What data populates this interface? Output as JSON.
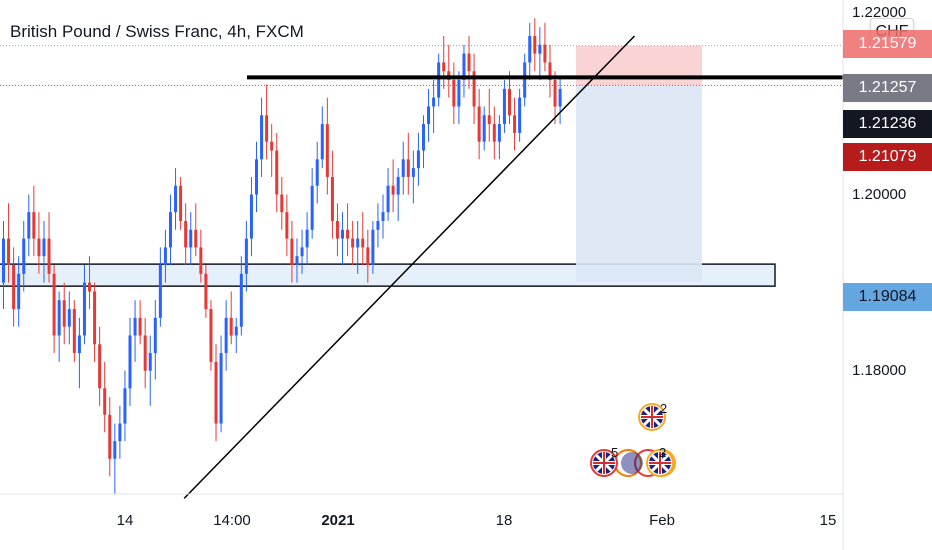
{
  "header": {
    "title": "British Pound / Swiss Franc, 4h, FXCM",
    "currency": "CHF"
  },
  "colors": {
    "up": "#2962ff",
    "down": "#e53935",
    "price_line": "#e53935",
    "stop_zone": "#f9c9c9",
    "target_zone": "#dbe7f5",
    "support_zone": "#e6f0fa",
    "tag_gray": "#787b86",
    "tag_black": "#131722",
    "tag_red": "#b71c1c",
    "tag_blue": "#64a6e0",
    "tag_pink": "#ef6c6c"
  },
  "chart_data": {
    "type": "candlestick",
    "symbol": "British Pound / Swiss Franc",
    "interval": "4h",
    "source": "FXCM",
    "y_ticks": [
      "1.18000",
      "1.20000"
    ],
    "ylim": [
      1.166,
      1.2205
    ],
    "x_ticks": [
      {
        "label": "14",
        "bold": false
      },
      {
        "label": "14:00",
        "bold": false
      },
      {
        "label": "2021",
        "bold": true
      },
      {
        "label": "18",
        "bold": false
      },
      {
        "label": "Feb",
        "bold": false
      },
      {
        "label": "15",
        "bold": false
      }
    ],
    "price_tags": [
      {
        "label": "1.21579",
        "value": 1.2158,
        "style": "pink"
      },
      {
        "label": "1.21257",
        "value": 1.2126,
        "style": "gray"
      },
      {
        "label": "1.21236",
        "value": 1.2124,
        "style": "black"
      },
      {
        "label": "1.21079",
        "value": 1.2108,
        "style": "red"
      },
      {
        "label": "1.19084",
        "value": 1.1908,
        "style": "blue"
      }
    ],
    "top_partial_label": "1.22000",
    "resistance_level": 1.2133,
    "support_zone": [
      1.1896,
      1.1921
    ],
    "position": {
      "type": "short",
      "entry": 1.2124,
      "stop": 1.2169,
      "target": 1.1901
    },
    "trendline": {
      "from": {
        "bar": 36,
        "price": 1.1655
      },
      "to": {
        "bar": 125,
        "price": 1.218
      }
    },
    "events": [
      {
        "label": "2",
        "flag": "uk"
      },
      {
        "label": "5",
        "flag": "uk"
      },
      {
        "label": "2",
        "flag": "uk"
      }
    ],
    "series": [
      {
        "name": "GBPCHF",
        "ohlc": [
          [
            1.19,
            1.197,
            1.187,
            1.195
          ],
          [
            1.195,
            1.199,
            1.19,
            1.192
          ],
          [
            1.192,
            1.194,
            1.185,
            1.187
          ],
          [
            1.187,
            1.193,
            1.185,
            1.191
          ],
          [
            1.191,
            1.197,
            1.189,
            1.195
          ],
          [
            1.195,
            1.2,
            1.193,
            1.198
          ],
          [
            1.198,
            1.201,
            1.193,
            1.195
          ],
          [
            1.195,
            1.198,
            1.191,
            1.193
          ],
          [
            1.193,
            1.197,
            1.19,
            1.195
          ],
          [
            1.195,
            1.198,
            1.19,
            1.191
          ],
          [
            1.191,
            1.192,
            1.182,
            1.184
          ],
          [
            1.184,
            1.189,
            1.181,
            1.188
          ],
          [
            1.188,
            1.19,
            1.183,
            1.185
          ],
          [
            1.185,
            1.189,
            1.183,
            1.187
          ],
          [
            1.187,
            1.188,
            1.181,
            1.182
          ],
          [
            1.182,
            1.186,
            1.178,
            1.184
          ],
          [
            1.184,
            1.192,
            1.183,
            1.19
          ],
          [
            1.19,
            1.193,
            1.187,
            1.189
          ],
          [
            1.189,
            1.19,
            1.181,
            1.183
          ],
          [
            1.183,
            1.185,
            1.176,
            1.178
          ],
          [
            1.178,
            1.181,
            1.173,
            1.175
          ],
          [
            1.175,
            1.177,
            1.168,
            1.17
          ],
          [
            1.17,
            1.174,
            1.166,
            1.172
          ],
          [
            1.172,
            1.176,
            1.17,
            1.174
          ],
          [
            1.174,
            1.18,
            1.172,
            1.178
          ],
          [
            1.178,
            1.186,
            1.176,
            1.184
          ],
          [
            1.184,
            1.188,
            1.181,
            1.186
          ],
          [
            1.186,
            1.188,
            1.183,
            1.184
          ],
          [
            1.184,
            1.186,
            1.178,
            1.18
          ],
          [
            1.18,
            1.184,
            1.176,
            1.182
          ],
          [
            1.182,
            1.188,
            1.179,
            1.186
          ],
          [
            1.186,
            1.194,
            1.185,
            1.192
          ],
          [
            1.192,
            1.196,
            1.19,
            1.194
          ],
          [
            1.194,
            1.2,
            1.192,
            1.198
          ],
          [
            1.198,
            1.203,
            1.196,
            1.201
          ],
          [
            1.201,
            1.202,
            1.196,
            1.197
          ],
          [
            1.197,
            1.199,
            1.192,
            1.194
          ],
          [
            1.194,
            1.198,
            1.192,
            1.196
          ],
          [
            1.196,
            1.199,
            1.193,
            1.194
          ],
          [
            1.194,
            1.196,
            1.19,
            1.191
          ],
          [
            1.191,
            1.192,
            1.186,
            1.187
          ],
          [
            1.187,
            1.188,
            1.18,
            1.181
          ],
          [
            1.181,
            1.183,
            1.172,
            1.174
          ],
          [
            1.174,
            1.184,
            1.173,
            1.182
          ],
          [
            1.182,
            1.188,
            1.18,
            1.186
          ],
          [
            1.186,
            1.189,
            1.183,
            1.184
          ],
          [
            1.184,
            1.186,
            1.182,
            1.185
          ],
          [
            1.185,
            1.193,
            1.184,
            1.191
          ],
          [
            1.191,
            1.197,
            1.189,
            1.195
          ],
          [
            1.195,
            1.202,
            1.193,
            1.2
          ],
          [
            1.2,
            1.206,
            1.198,
            1.204
          ],
          [
            1.204,
            1.211,
            1.202,
            1.209
          ],
          [
            1.209,
            1.2125,
            1.204,
            1.206
          ],
          [
            1.206,
            1.208,
            1.202,
            1.205
          ],
          [
            1.205,
            1.207,
            1.198,
            1.2
          ],
          [
            1.2,
            1.202,
            1.196,
            1.198
          ],
          [
            1.198,
            1.2,
            1.193,
            1.195
          ],
          [
            1.195,
            1.197,
            1.19,
            1.192
          ],
          [
            1.192,
            1.195,
            1.19,
            1.193
          ],
          [
            1.193,
            1.196,
            1.191,
            1.194
          ],
          [
            1.194,
            1.198,
            1.192,
            1.196
          ],
          [
            1.196,
            1.203,
            1.195,
            1.201
          ],
          [
            1.201,
            1.206,
            1.199,
            1.204
          ],
          [
            1.204,
            1.21,
            1.203,
            1.208
          ],
          [
            1.208,
            1.211,
            1.2,
            1.202
          ],
          [
            1.202,
            1.205,
            1.195,
            1.197
          ],
          [
            1.197,
            1.199,
            1.193,
            1.195
          ],
          [
            1.195,
            1.198,
            1.192,
            1.196
          ],
          [
            1.196,
            1.199,
            1.193,
            1.195
          ],
          [
            1.195,
            1.197,
            1.192,
            1.194
          ],
          [
            1.194,
            1.197,
            1.191,
            1.195
          ],
          [
            1.195,
            1.198,
            1.192,
            1.194
          ],
          [
            1.194,
            1.196,
            1.19,
            1.192
          ],
          [
            1.192,
            1.197,
            1.191,
            1.196
          ],
          [
            1.196,
            1.199,
            1.194,
            1.197
          ],
          [
            1.197,
            1.2,
            1.195,
            1.198
          ],
          [
            1.198,
            1.203,
            1.197,
            1.201
          ],
          [
            1.201,
            1.204,
            1.198,
            1.2
          ],
          [
            1.2,
            1.203,
            1.197,
            1.202
          ],
          [
            1.202,
            1.206,
            1.2,
            1.204
          ],
          [
            1.204,
            1.207,
            1.2,
            1.202
          ],
          [
            1.202,
            1.205,
            1.199,
            1.203
          ],
          [
            1.203,
            1.207,
            1.201,
            1.205
          ],
          [
            1.205,
            1.209,
            1.203,
            1.208
          ],
          [
            1.208,
            1.212,
            1.206,
            1.21
          ],
          [
            1.21,
            1.213,
            1.207,
            1.211
          ],
          [
            1.211,
            1.216,
            1.21,
            1.215
          ],
          [
            1.215,
            1.218,
            1.212,
            1.214
          ],
          [
            1.214,
            1.217,
            1.211,
            1.213
          ],
          [
            1.213,
            1.215,
            1.208,
            1.21
          ],
          [
            1.21,
            1.214,
            1.208,
            1.213
          ],
          [
            1.213,
            1.217,
            1.211,
            1.216
          ],
          [
            1.216,
            1.218,
            1.212,
            1.214
          ],
          [
            1.214,
            1.216,
            1.208,
            1.21
          ],
          [
            1.21,
            1.212,
            1.204,
            1.206
          ],
          [
            1.206,
            1.21,
            1.205,
            1.209
          ],
          [
            1.209,
            1.212,
            1.206,
            1.208
          ],
          [
            1.208,
            1.21,
            1.204,
            1.206
          ],
          [
            1.206,
            1.209,
            1.204,
            1.208
          ],
          [
            1.208,
            1.213,
            1.207,
            1.212
          ],
          [
            1.212,
            1.214,
            1.208,
            1.209
          ],
          [
            1.209,
            1.211,
            1.205,
            1.207
          ],
          [
            1.207,
            1.212,
            1.206,
            1.211
          ],
          [
            1.211,
            1.216,
            1.21,
            1.215
          ],
          [
            1.215,
            1.2195,
            1.213,
            1.218
          ],
          [
            1.218,
            1.22,
            1.214,
            1.216
          ],
          [
            1.216,
            1.219,
            1.213,
            1.217
          ],
          [
            1.217,
            1.2195,
            1.214,
            1.215
          ],
          [
            1.215,
            1.217,
            1.211,
            1.213
          ],
          [
            1.213,
            1.214,
            1.208,
            1.21
          ],
          [
            1.21,
            1.2135,
            1.208,
            1.212
          ]
        ]
      }
    ]
  }
}
